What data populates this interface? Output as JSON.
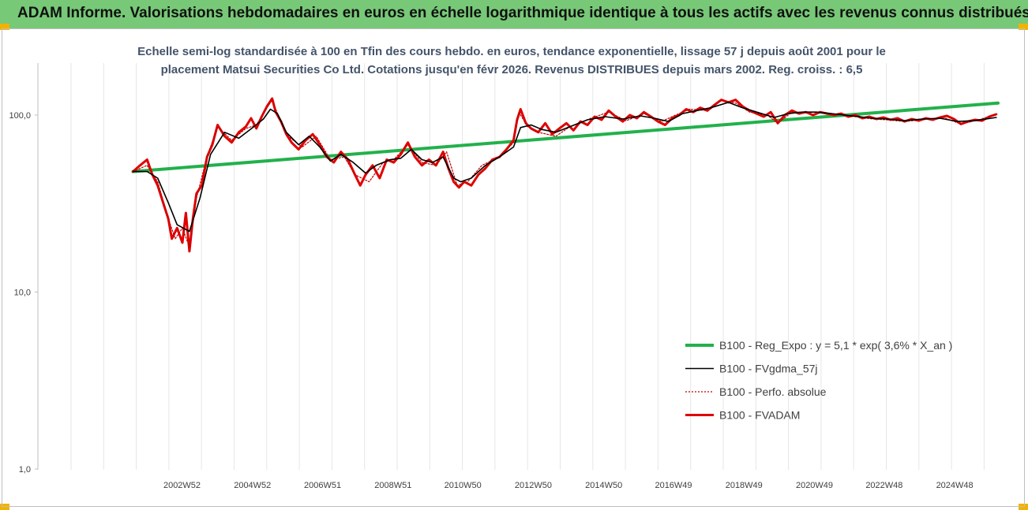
{
  "header": {
    "banner_title": "ADAM Informe. Valorisations hebdomadaires en euros en échelle logarithmique identique à tous les actifs avec les revenus connus distribués"
  },
  "colors": {
    "banner_bg": "#77c977",
    "accent_corner": "#f2b200",
    "trend": "#22b14c",
    "smooth": "#000000",
    "perfo": "#c00000",
    "fvadam": "#e00000",
    "title_text": "#44546a"
  },
  "chart_data": {
    "type": "line",
    "title": [
      "Echelle semi-log standardisée à 100 en Tfin des cours hebdo. en euros, tendance exponentielle, lissage 57 j depuis août 2001 pour le",
      "placement Matsui Securities Co Ltd. Cotations jusqu'en févr 2026. Revenus DISTRIBUES depuis mars 2002. Reg. croiss. : 6,5"
    ],
    "y_scale": "log",
    "ylim": [
      1,
      200
    ],
    "y_ticks": [
      {
        "value": 1,
        "label": "1,0"
      },
      {
        "value": 10,
        "label": "10,0"
      },
      {
        "value": 100,
        "label": "100,0"
      }
    ],
    "x_range": [
      1998.9,
      2026.15
    ],
    "x_ticks": [
      {
        "x": 2002.99,
        "label": "2002W52"
      },
      {
        "x": 2004.99,
        "label": "2004W52"
      },
      {
        "x": 2006.98,
        "label": "2006W51"
      },
      {
        "x": 2008.98,
        "label": "2008W51"
      },
      {
        "x": 2010.96,
        "label": "2010W50"
      },
      {
        "x": 2012.96,
        "label": "2012W50"
      },
      {
        "x": 2014.96,
        "label": "2014W50"
      },
      {
        "x": 2016.94,
        "label": "2016W49"
      },
      {
        "x": 2018.94,
        "label": "2018W49"
      },
      {
        "x": 2020.94,
        "label": "2020W49"
      },
      {
        "x": 2022.92,
        "label": "2022W48"
      },
      {
        "x": 2024.92,
        "label": "2024W48"
      }
    ],
    "grid": "vertical",
    "legend_position": "bottom-right",
    "series": [
      {
        "key": "trend",
        "name": "B100 - Reg_Expo : y = 5,1 * exp( 3,6% *  X_an )",
        "style": "solid-thick",
        "points": [
          [
            2001.6,
            48.0
          ],
          [
            2026.15,
            117.0
          ]
        ]
      },
      {
        "key": "smooth",
        "name": "B100 - FVgdma_57j",
        "style": "solid-thin",
        "points": [
          [
            2001.6,
            48
          ],
          [
            2002.0,
            48
          ],
          [
            2002.3,
            44
          ],
          [
            2002.6,
            32
          ],
          [
            2002.85,
            24
          ],
          [
            2003.2,
            22
          ],
          [
            2003.5,
            34
          ],
          [
            2003.8,
            60
          ],
          [
            2004.2,
            80
          ],
          [
            2004.6,
            74
          ],
          [
            2005.0,
            85
          ],
          [
            2005.3,
            95
          ],
          [
            2005.5,
            108
          ],
          [
            2005.7,
            102
          ],
          [
            2005.95,
            80
          ],
          [
            2006.3,
            68
          ],
          [
            2006.6,
            76
          ],
          [
            2006.9,
            66
          ],
          [
            2007.2,
            55
          ],
          [
            2007.5,
            60
          ],
          [
            2007.85,
            54
          ],
          [
            2008.2,
            47
          ],
          [
            2008.5,
            52
          ],
          [
            2008.9,
            56
          ],
          [
            2009.2,
            57
          ],
          [
            2009.5,
            64
          ],
          [
            2009.8,
            56
          ],
          [
            2010.1,
            54
          ],
          [
            2010.4,
            58
          ],
          [
            2010.7,
            44
          ],
          [
            2010.9,
            42
          ],
          [
            2011.2,
            44
          ],
          [
            2011.6,
            52
          ],
          [
            2012.0,
            58
          ],
          [
            2012.4,
            66
          ],
          [
            2012.6,
            85
          ],
          [
            2012.9,
            88
          ],
          [
            2013.2,
            83
          ],
          [
            2013.6,
            80
          ],
          [
            2014.0,
            86
          ],
          [
            2014.5,
            94
          ],
          [
            2015.0,
            98
          ],
          [
            2015.5,
            95
          ],
          [
            2016.0,
            99
          ],
          [
            2016.4,
            96
          ],
          [
            2016.8,
            92
          ],
          [
            2017.2,
            102
          ],
          [
            2017.6,
            106
          ],
          [
            2018.0,
            110
          ],
          [
            2018.5,
            118
          ],
          [
            2018.9,
            110
          ],
          [
            2019.3,
            104
          ],
          [
            2019.8,
            97
          ],
          [
            2020.2,
            102
          ],
          [
            2020.6,
            104
          ],
          [
            2021.0,
            104
          ],
          [
            2021.4,
            102
          ],
          [
            2021.8,
            100
          ],
          [
            2022.2,
            98
          ],
          [
            2022.6,
            96
          ],
          [
            2023.0,
            95
          ],
          [
            2023.5,
            93
          ],
          [
            2024.0,
            95
          ],
          [
            2024.5,
            96
          ],
          [
            2025.0,
            92
          ],
          [
            2025.5,
            93
          ],
          [
            2026.1,
            97
          ]
        ]
      },
      {
        "key": "perfo",
        "name": "B100 - Perfo. absolue",
        "style": "dotted",
        "points": [
          [
            2001.6,
            48
          ],
          [
            2002.0,
            52
          ],
          [
            2002.3,
            42
          ],
          [
            2002.6,
            26
          ],
          [
            2002.8,
            20
          ],
          [
            2003.0,
            23
          ],
          [
            2003.2,
            18
          ],
          [
            2003.4,
            34
          ],
          [
            2003.7,
            58
          ],
          [
            2004.0,
            86
          ],
          [
            2004.4,
            72
          ],
          [
            2004.8,
            84
          ],
          [
            2005.1,
            88
          ],
          [
            2005.35,
            106
          ],
          [
            2005.55,
            122
          ],
          [
            2005.75,
            96
          ],
          [
            2006.0,
            76
          ],
          [
            2006.4,
            66
          ],
          [
            2006.8,
            76
          ],
          [
            2007.2,
            56
          ],
          [
            2007.6,
            58
          ],
          [
            2007.9,
            46
          ],
          [
            2008.3,
            42
          ],
          [
            2008.7,
            54
          ],
          [
            2009.0,
            56
          ],
          [
            2009.4,
            68
          ],
          [
            2009.8,
            54
          ],
          [
            2010.2,
            52
          ],
          [
            2010.5,
            62
          ],
          [
            2010.8,
            40
          ],
          [
            2011.1,
            42
          ],
          [
            2011.5,
            52
          ],
          [
            2012.0,
            58
          ],
          [
            2012.4,
            70
          ],
          [
            2012.55,
            104
          ],
          [
            2012.8,
            86
          ],
          [
            2013.1,
            80
          ],
          [
            2013.6,
            76
          ],
          [
            2014.0,
            86
          ],
          [
            2014.6,
            96
          ],
          [
            2015.1,
            104
          ],
          [
            2015.6,
            93
          ],
          [
            2016.1,
            102
          ],
          [
            2016.6,
            92
          ],
          [
            2017.0,
            100
          ],
          [
            2017.4,
            108
          ],
          [
            2017.9,
            106
          ],
          [
            2018.3,
            121
          ],
          [
            2018.7,
            117
          ],
          [
            2019.1,
            104
          ],
          [
            2019.6,
            100
          ],
          [
            2019.9,
            90
          ],
          [
            2020.3,
            104
          ],
          [
            2020.7,
            104
          ],
          [
            2021.1,
            104
          ],
          [
            2021.6,
            101
          ],
          [
            2022.1,
            98
          ],
          [
            2022.6,
            95
          ],
          [
            2023.0,
            94
          ],
          [
            2023.5,
            92
          ],
          [
            2024.0,
            94
          ],
          [
            2024.6,
            97
          ],
          [
            2025.1,
            89
          ],
          [
            2025.6,
            94
          ],
          [
            2026.1,
            101
          ]
        ]
      },
      {
        "key": "fvadam",
        "name": "B100 - FVADAM",
        "style": "solid-thick",
        "points": [
          [
            2001.6,
            48
          ],
          [
            2001.8,
            52
          ],
          [
            2002.0,
            56
          ],
          [
            2002.15,
            46
          ],
          [
            2002.3,
            40
          ],
          [
            2002.5,
            30
          ],
          [
            2002.6,
            26
          ],
          [
            2002.7,
            20
          ],
          [
            2002.85,
            23
          ],
          [
            2003.0,
            19
          ],
          [
            2003.1,
            28
          ],
          [
            2003.2,
            17
          ],
          [
            2003.3,
            26
          ],
          [
            2003.4,
            36
          ],
          [
            2003.55,
            40
          ],
          [
            2003.7,
            58
          ],
          [
            2003.85,
            68
          ],
          [
            2004.0,
            88
          ],
          [
            2004.2,
            76
          ],
          [
            2004.4,
            70
          ],
          [
            2004.6,
            80
          ],
          [
            2004.8,
            86
          ],
          [
            2004.95,
            96
          ],
          [
            2005.1,
            84
          ],
          [
            2005.25,
            98
          ],
          [
            2005.4,
            112
          ],
          [
            2005.55,
            124
          ],
          [
            2005.65,
            104
          ],
          [
            2005.8,
            92
          ],
          [
            2005.95,
            78
          ],
          [
            2006.1,
            70
          ],
          [
            2006.3,
            64
          ],
          [
            2006.5,
            72
          ],
          [
            2006.7,
            78
          ],
          [
            2006.9,
            68
          ],
          [
            2007.1,
            58
          ],
          [
            2007.3,
            54
          ],
          [
            2007.5,
            62
          ],
          [
            2007.7,
            56
          ],
          [
            2007.9,
            46
          ],
          [
            2008.05,
            40
          ],
          [
            2008.2,
            46
          ],
          [
            2008.4,
            52
          ],
          [
            2008.6,
            44
          ],
          [
            2008.8,
            56
          ],
          [
            2009.0,
            54
          ],
          [
            2009.2,
            60
          ],
          [
            2009.4,
            70
          ],
          [
            2009.6,
            58
          ],
          [
            2009.8,
            52
          ],
          [
            2010.0,
            56
          ],
          [
            2010.2,
            52
          ],
          [
            2010.4,
            62
          ],
          [
            2010.55,
            50
          ],
          [
            2010.7,
            42
          ],
          [
            2010.85,
            39
          ],
          [
            2011.0,
            42
          ],
          [
            2011.2,
            40
          ],
          [
            2011.4,
            46
          ],
          [
            2011.6,
            50
          ],
          [
            2011.8,
            56
          ],
          [
            2012.0,
            58
          ],
          [
            2012.2,
            64
          ],
          [
            2012.4,
            72
          ],
          [
            2012.5,
            94
          ],
          [
            2012.6,
            108
          ],
          [
            2012.75,
            90
          ],
          [
            2012.9,
            84
          ],
          [
            2013.1,
            80
          ],
          [
            2013.3,
            90
          ],
          [
            2013.5,
            78
          ],
          [
            2013.7,
            84
          ],
          [
            2013.9,
            90
          ],
          [
            2014.1,
            82
          ],
          [
            2014.3,
            92
          ],
          [
            2014.5,
            88
          ],
          [
            2014.7,
            98
          ],
          [
            2014.9,
            94
          ],
          [
            2015.1,
            106
          ],
          [
            2015.3,
            98
          ],
          [
            2015.5,
            92
          ],
          [
            2015.7,
            100
          ],
          [
            2015.9,
            96
          ],
          [
            2016.1,
            104
          ],
          [
            2016.3,
            98
          ],
          [
            2016.5,
            92
          ],
          [
            2016.7,
            88
          ],
          [
            2016.9,
            96
          ],
          [
            2017.1,
            100
          ],
          [
            2017.3,
            108
          ],
          [
            2017.5,
            104
          ],
          [
            2017.7,
            110
          ],
          [
            2017.9,
            106
          ],
          [
            2018.1,
            114
          ],
          [
            2018.3,
            122
          ],
          [
            2018.5,
            118
          ],
          [
            2018.7,
            122
          ],
          [
            2018.9,
            112
          ],
          [
            2019.1,
            106
          ],
          [
            2019.3,
            102
          ],
          [
            2019.5,
            98
          ],
          [
            2019.7,
            104
          ],
          [
            2019.9,
            90
          ],
          [
            2020.1,
            100
          ],
          [
            2020.3,
            106
          ],
          [
            2020.5,
            102
          ],
          [
            2020.7,
            104
          ],
          [
            2020.9,
            100
          ],
          [
            2021.1,
            104
          ],
          [
            2021.3,
            102
          ],
          [
            2021.5,
            100
          ],
          [
            2021.7,
            102
          ],
          [
            2021.9,
            98
          ],
          [
            2022.1,
            100
          ],
          [
            2022.3,
            96
          ],
          [
            2022.5,
            98
          ],
          [
            2022.7,
            95
          ],
          [
            2022.9,
            97
          ],
          [
            2023.1,
            94
          ],
          [
            2023.3,
            96
          ],
          [
            2023.5,
            92
          ],
          [
            2023.7,
            95
          ],
          [
            2023.9,
            93
          ],
          [
            2024.1,
            96
          ],
          [
            2024.3,
            94
          ],
          [
            2024.5,
            97
          ],
          [
            2024.7,
            99
          ],
          [
            2024.9,
            95
          ],
          [
            2025.1,
            89
          ],
          [
            2025.3,
            92
          ],
          [
            2025.5,
            94
          ],
          [
            2025.7,
            93
          ],
          [
            2025.9,
            98
          ],
          [
            2026.1,
            101
          ]
        ]
      }
    ]
  }
}
